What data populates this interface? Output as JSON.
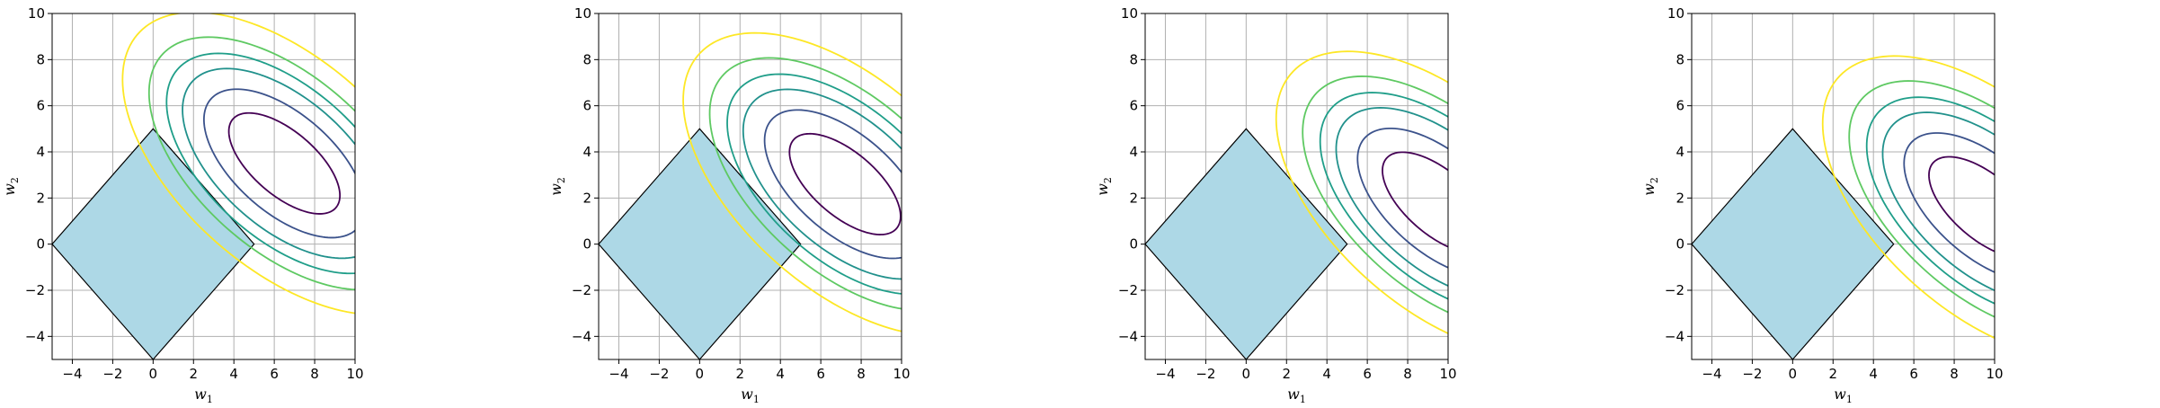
{
  "chart_data": [
    {
      "type": "contour",
      "xlabel": "w",
      "xlabel_sub": "1",
      "ylabel": "w",
      "ylabel_sub": "2",
      "xlim": [
        -5,
        10
      ],
      "ylim": [
        -5,
        10
      ],
      "xticks": [
        -4,
        -2,
        0,
        2,
        4,
        6,
        8,
        10
      ],
      "yticks": [
        -4,
        -2,
        0,
        2,
        4,
        6,
        8,
        10
      ],
      "grid": true,
      "constraint_region": {
        "shape": "diamond",
        "vertices": [
          [
            5,
            0
          ],
          [
            0,
            5
          ],
          [
            -5,
            0
          ],
          [
            0,
            -5
          ]
        ],
        "color": "#add8e6"
      },
      "ellipse_center": [
        6.5,
        3.5
      ],
      "ellipse_angle_deg": -35,
      "ellipse_axes": [
        {
          "a": 3.2,
          "b": 1.45,
          "color": "#440154"
        },
        {
          "a": 4.6,
          "b": 2.25,
          "color": "#3b528b"
        },
        {
          "a": 5.8,
          "b": 2.95,
          "color": "#21918c"
        },
        {
          "a": 6.7,
          "b": 3.45,
          "color": "#1f9e89"
        },
        {
          "a": 7.7,
          "b": 3.95,
          "color": "#5ec962"
        },
        {
          "a": 9.2,
          "b": 4.75,
          "color": "#fde725"
        }
      ]
    },
    {
      "type": "contour",
      "xlabel": "w",
      "xlabel_sub": "1",
      "ylabel": "w",
      "ylabel_sub": "2",
      "xlim": [
        -5,
        10
      ],
      "ylim": [
        -5,
        10
      ],
      "xticks": [
        -4,
        -2,
        0,
        2,
        4,
        6,
        8,
        10
      ],
      "yticks": [
        -4,
        -2,
        0,
        2,
        4,
        6,
        8,
        10
      ],
      "grid": true,
      "constraint_region": {
        "shape": "diamond",
        "vertices": [
          [
            5,
            0
          ],
          [
            0,
            5
          ],
          [
            -5,
            0
          ],
          [
            0,
            -5
          ]
        ],
        "color": "#add8e6"
      },
      "ellipse_center": [
        7.2,
        2.6
      ],
      "ellipse_angle_deg": -35,
      "ellipse_axes": [
        {
          "a": 3.2,
          "b": 1.45,
          "color": "#440154"
        },
        {
          "a": 4.6,
          "b": 2.25,
          "color": "#3b528b"
        },
        {
          "a": 5.8,
          "b": 2.95,
          "color": "#21918c"
        },
        {
          "a": 6.7,
          "b": 3.45,
          "color": "#1f9e89"
        },
        {
          "a": 7.7,
          "b": 3.95,
          "color": "#5ec962"
        },
        {
          "a": 9.2,
          "b": 4.75,
          "color": "#fde725"
        }
      ]
    },
    {
      "type": "contour",
      "xlabel": "w",
      "xlabel_sub": "1",
      "ylabel": "w",
      "ylabel_sub": "2",
      "xlim": [
        -5,
        10
      ],
      "ylim": [
        -5,
        10
      ],
      "xticks": [
        -4,
        -2,
        0,
        2,
        4,
        6,
        8,
        10
      ],
      "yticks": [
        -4,
        -2,
        0,
        2,
        4,
        6,
        8,
        10
      ],
      "grid": true,
      "constraint_region": {
        "shape": "diamond",
        "vertices": [
          [
            5,
            0
          ],
          [
            0,
            5
          ],
          [
            -5,
            0
          ],
          [
            0,
            -5
          ]
        ],
        "color": "#add8e6"
      },
      "ellipse_center": [
        9.5,
        1.8
      ],
      "ellipse_angle_deg": -35,
      "ellipse_axes": [
        {
          "a": 3.2,
          "b": 1.45,
          "color": "#440154"
        },
        {
          "a": 4.6,
          "b": 2.25,
          "color": "#3b528b"
        },
        {
          "a": 5.8,
          "b": 2.95,
          "color": "#21918c"
        },
        {
          "a": 6.7,
          "b": 3.45,
          "color": "#1f9e89"
        },
        {
          "a": 7.7,
          "b": 3.95,
          "color": "#5ec962"
        },
        {
          "a": 9.2,
          "b": 4.75,
          "color": "#fde725"
        }
      ]
    },
    {
      "type": "contour",
      "xlabel": "w",
      "xlabel_sub": "1",
      "ylabel": "w",
      "ylabel_sub": "2",
      "xlim": [
        -5,
        10
      ],
      "ylim": [
        -5,
        10
      ],
      "xticks": [
        -4,
        -2,
        0,
        2,
        4,
        6,
        8,
        10
      ],
      "yticks": [
        -4,
        -2,
        0,
        2,
        4,
        6,
        8,
        10
      ],
      "grid": true,
      "constraint_region": {
        "shape": "diamond",
        "vertices": [
          [
            5,
            0
          ],
          [
            0,
            5
          ],
          [
            -5,
            0
          ],
          [
            0,
            -5
          ]
        ],
        "color": "#add8e6"
      },
      "ellipse_center": [
        9.5,
        1.6
      ],
      "ellipse_angle_deg": -35,
      "ellipse_axes": [
        {
          "a": 3.2,
          "b": 1.45,
          "color": "#440154"
        },
        {
          "a": 4.6,
          "b": 2.25,
          "color": "#3b528b"
        },
        {
          "a": 5.8,
          "b": 2.95,
          "color": "#21918c"
        },
        {
          "a": 6.7,
          "b": 3.45,
          "color": "#1f9e89"
        },
        {
          "a": 7.7,
          "b": 3.95,
          "color": "#5ec962"
        },
        {
          "a": 9.2,
          "b": 4.75,
          "color": "#fde725"
        }
      ]
    }
  ]
}
